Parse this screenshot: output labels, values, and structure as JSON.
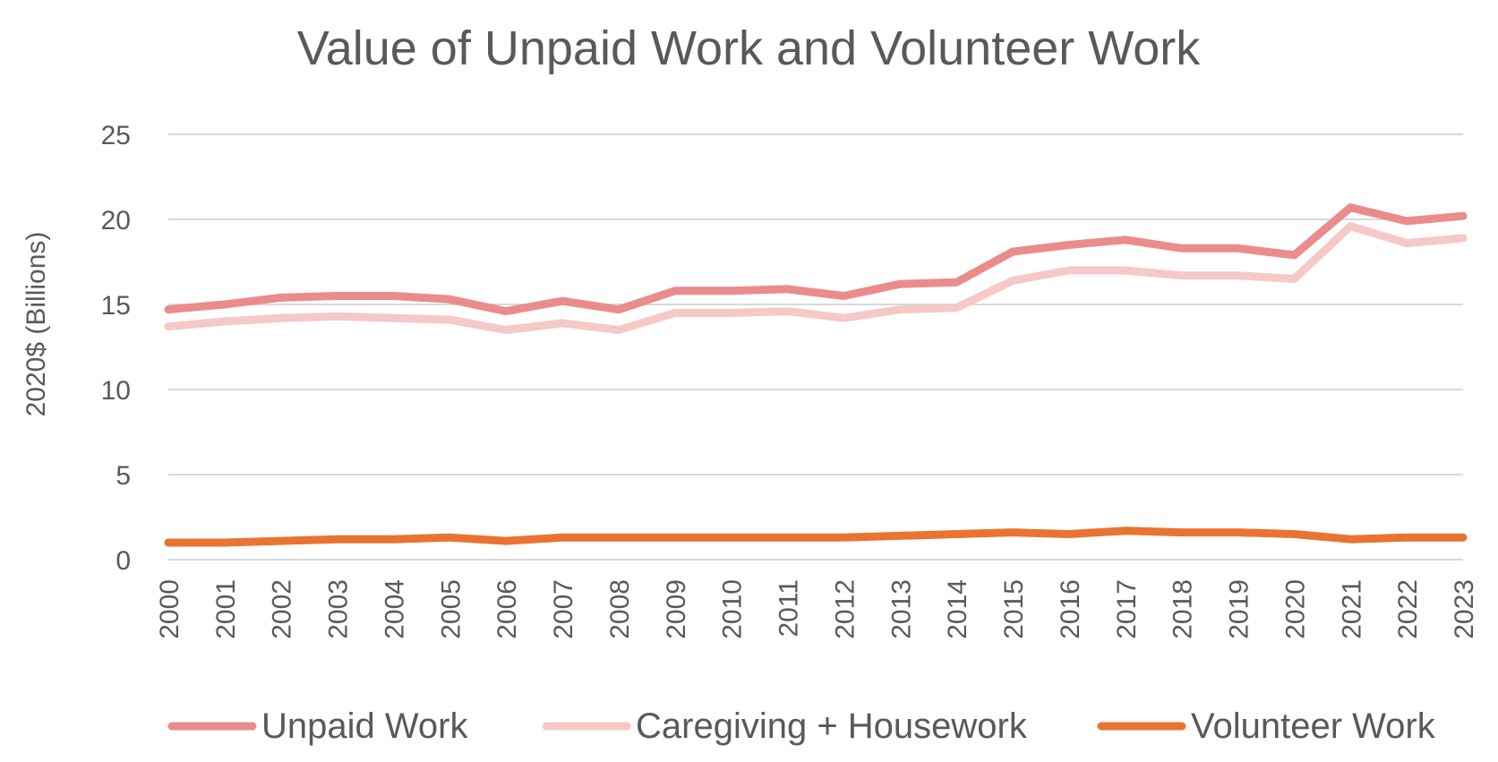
{
  "chart_data": {
    "type": "line",
    "title": "Value of Unpaid Work and Volunteer Work",
    "xlabel": "",
    "ylabel": "2020$ (Billions)",
    "ylim": [
      0,
      25
    ],
    "yticks": [
      0,
      5,
      10,
      15,
      20,
      25
    ],
    "grid": true,
    "legend_position": "bottom",
    "x": [
      "2000",
      "2001",
      "2002",
      "2003",
      "2004",
      "2005",
      "2006",
      "2007",
      "2008",
      "2009",
      "2010",
      "2011",
      "2012",
      "2013",
      "2014",
      "2015",
      "2016",
      "2017",
      "2018",
      "2019",
      "2020",
      "2021",
      "2022",
      "2023"
    ],
    "series": [
      {
        "name": "Unpaid Work",
        "color": "#EA8C8C",
        "values": [
          14.7,
          15.0,
          15.4,
          15.5,
          15.5,
          15.3,
          14.6,
          15.2,
          14.7,
          15.8,
          15.8,
          15.9,
          15.5,
          16.2,
          16.3,
          18.1,
          18.5,
          18.8,
          18.3,
          18.3,
          17.9,
          20.7,
          19.9,
          20.2
        ]
      },
      {
        "name": "Caregiving + Housework",
        "color": "#F6C8C8",
        "values": [
          13.7,
          14.0,
          14.2,
          14.3,
          14.2,
          14.1,
          13.5,
          13.9,
          13.5,
          14.5,
          14.5,
          14.6,
          14.2,
          14.7,
          14.8,
          16.4,
          17.0,
          17.0,
          16.7,
          16.7,
          16.5,
          19.6,
          18.6,
          18.9
        ]
      },
      {
        "name": "Volunteer Work",
        "color": "#E97432",
        "values": [
          1.0,
          1.0,
          1.1,
          1.2,
          1.2,
          1.3,
          1.1,
          1.3,
          1.3,
          1.3,
          1.3,
          1.3,
          1.3,
          1.4,
          1.5,
          1.6,
          1.5,
          1.7,
          1.6,
          1.6,
          1.5,
          1.2,
          1.3,
          1.3
        ]
      }
    ]
  }
}
